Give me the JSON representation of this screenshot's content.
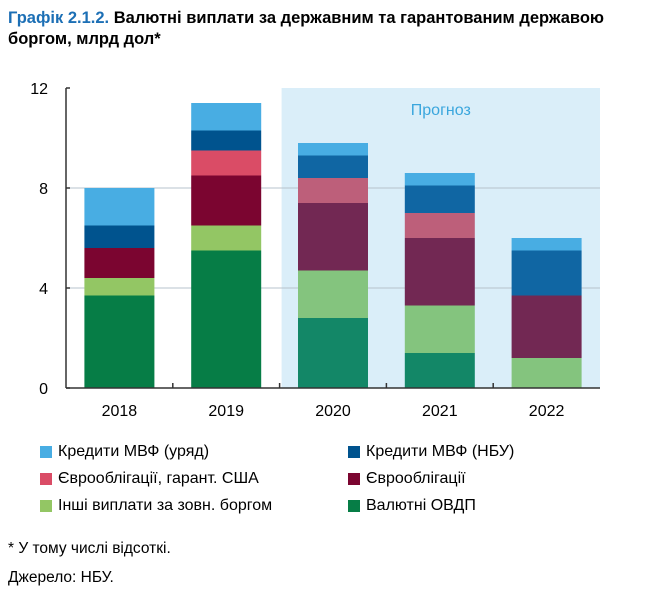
{
  "title_number": "Графік 2.1.2.",
  "title_text": " Валютні виплати за державним та гарантованим державою боргом, млрд дол*",
  "chart_data": {
    "type": "bar",
    "stacked": true,
    "categories": [
      "2018",
      "2019",
      "2020",
      "2021",
      "2022"
    ],
    "ylim": [
      0,
      12
    ],
    "yticks": [
      0,
      4,
      8,
      12
    ],
    "grid": true,
    "forecast_label": "Прогноз",
    "forecast_categories": [
      "2020",
      "2021",
      "2022"
    ],
    "legend_position": "bottom",
    "series": [
      {
        "name": "Валютні ОВДП",
        "values": [
          3.7,
          5.5,
          2.8,
          1.4,
          0
        ],
        "color": "#067d46",
        "forecast_color": "#138767"
      },
      {
        "name": "Інші виплати за зовн. боргом",
        "values": [
          0.7,
          1.0,
          1.9,
          1.9,
          1.2
        ],
        "color": "#93c664",
        "forecast_color": "#84c47e"
      },
      {
        "name": "Єврооблігації",
        "values": [
          1.2,
          2.0,
          2.7,
          2.7,
          2.5
        ],
        "color": "#7b0530",
        "forecast_color": "#722853"
      },
      {
        "name": "Єврооблігації, гарант. США",
        "values": [
          0,
          1.0,
          1.0,
          1.0,
          0
        ],
        "color": "#da4c66",
        "forecast_color": "#bd5f7a"
      },
      {
        "name": "Кредити МВФ (НБУ)",
        "values": [
          0.9,
          0.8,
          0.9,
          1.1,
          1.8
        ],
        "color": "#00538e",
        "forecast_color": "#1066a3"
      },
      {
        "name": "Кредити МВФ (уряд)",
        "values": [
          1.5,
          1.1,
          0.5,
          0.5,
          0.5
        ],
        "color": "#48ade3",
        "forecast_color": "#48ade3"
      }
    ]
  },
  "footnote": "* У тому числі відсоткі.",
  "source": "Джерело: НБУ."
}
